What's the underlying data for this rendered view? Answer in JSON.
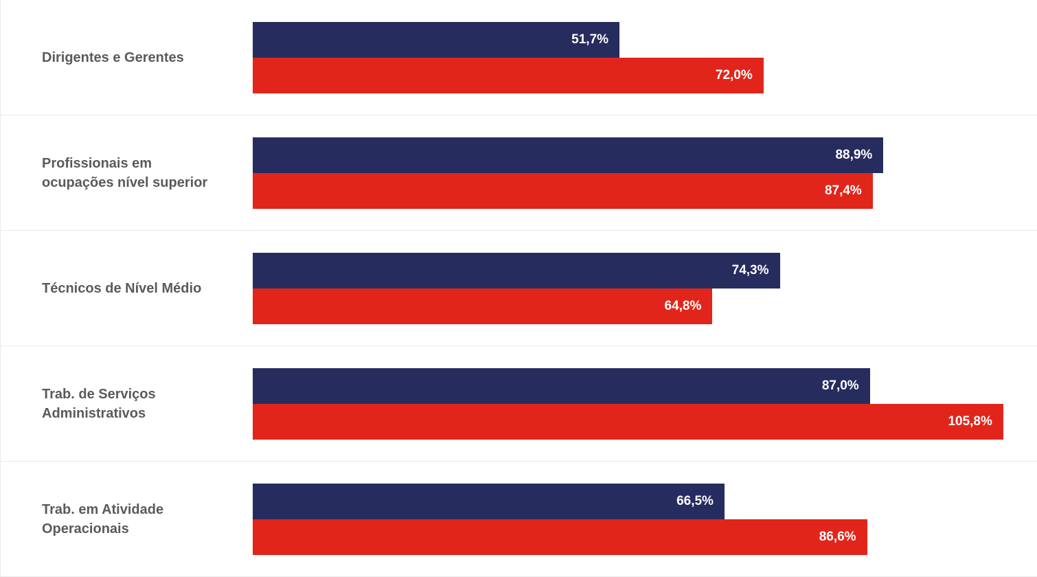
{
  "chart_data": {
    "type": "bar",
    "orientation": "horizontal",
    "categories": [
      "Dirigentes e Gerentes",
      "Profissionais em\nocupações nível superior",
      "Técnicos de Nível Médio",
      "Trab. de Serviços\nAdministrativos",
      "Trab. em Atividade\nOperacionais"
    ],
    "series": [
      {
        "color": "#272c5f",
        "values": [
          51.7,
          88.9,
          74.3,
          87.0,
          66.5
        ],
        "labels": [
          "51,7%",
          "88,9%",
          "74,3%",
          "87,0%",
          "66,5%"
        ]
      },
      {
        "color": "#e2251b",
        "values": [
          72.0,
          87.4,
          64.8,
          105.8,
          86.6
        ],
        "labels": [
          "72,0%",
          "87,4%",
          "64,8%",
          "105,8%",
          "86,6%"
        ]
      }
    ],
    "xlim": [
      0,
      107
    ],
    "grid": false,
    "legend": "none",
    "title": "",
    "xlabel": "",
    "ylabel": ""
  }
}
